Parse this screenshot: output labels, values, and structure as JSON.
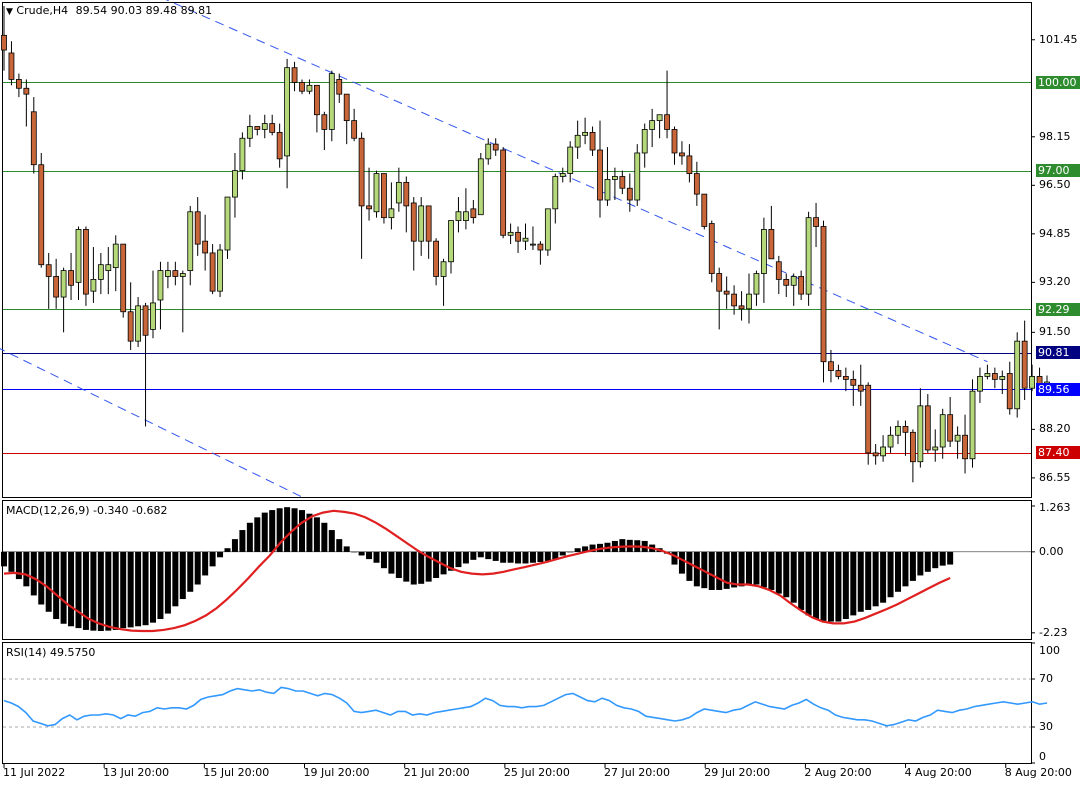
{
  "header": {
    "symbol": "Crude,H4",
    "ohlc": "89.54 90.03 89.48 89.81",
    "menu_icon": "triangle-down-icon"
  },
  "macd_label": "MACD(12,26,9) -0.340 -0.682",
  "rsi_label": "RSI(14) 49.5750",
  "price_axis": [
    "101.45",
    "98.15",
    "96.50",
    "94.85",
    "93.20",
    "91.50",
    "88.20",
    "86.55"
  ],
  "price_tags": [
    {
      "text": "100.00",
      "color": "#2e8b2e",
      "value": 100.0
    },
    {
      "text": "97.00",
      "color": "#2e8b2e",
      "value": 97.0
    },
    {
      "text": "92.29",
      "color": "#2e8b2e",
      "value": 92.29
    },
    {
      "text": "90.81",
      "color": "#000080",
      "value": 90.81
    },
    {
      "text": "89.56",
      "color": "#0000ff",
      "value": 89.56
    },
    {
      "text": "87.40",
      "color": "#cc0000",
      "value": 87.4
    }
  ],
  "macd_axis": [
    "1.263",
    "0.00",
    "-2.23"
  ],
  "rsi_axis": [
    "100",
    "70",
    "30",
    "0"
  ],
  "date_axis": [
    "11 Jul 2022",
    "13 Jul 20:00",
    "15 Jul 20:00",
    "19 Jul 20:00",
    "21 Jul 20:00",
    "25 Jul 20:00",
    "27 Jul 20:00",
    "29 Jul 20:00",
    "2 Aug 20:00",
    "4 Aug 20:00",
    "8 Aug 20:00"
  ],
  "colors": {
    "bull": "#b5d97a",
    "bear": "#c8663a",
    "wick": "#000000",
    "resistance": "#2e8b2e",
    "support": "#cc0000",
    "bid": "#000080",
    "ask": "#0000ff",
    "trend": "#3355ee",
    "macd_signal": "#e02020",
    "rsi": "#3399ff"
  },
  "chart_data": {
    "type": "candlestick",
    "symbol": "Crude",
    "timeframe": "H4",
    "ylim": [
      85.9,
      102.7
    ],
    "horizontal_levels": [
      100.0,
      97.0,
      92.29,
      90.81,
      89.56,
      87.4
    ],
    "trendlines": [
      {
        "from": {
          "bar": 21,
          "price": 102.9
        },
        "to": {
          "bar": 132,
          "price": 90.5
        }
      },
      {
        "from": {
          "bar": -1,
          "price": 91.0
        },
        "to": {
          "bar": 40,
          "price": 85.9
        }
      }
    ],
    "candles": [
      [
        101.6,
        102.6,
        100.4,
        101.1
      ],
      [
        101.0,
        101.4,
        99.9,
        100.1
      ],
      [
        100.1,
        100.3,
        99.5,
        99.8
      ],
      [
        99.8,
        100.1,
        98.5,
        99.6
      ],
      [
        99.0,
        99.5,
        96.9,
        97.2
      ],
      [
        97.2,
        97.6,
        93.7,
        93.8
      ],
      [
        93.8,
        94.2,
        92.3,
        93.4
      ],
      [
        93.4,
        94.0,
        92.3,
        92.7
      ],
      [
        92.7,
        93.7,
        91.5,
        93.6
      ],
      [
        93.6,
        94.2,
        92.6,
        93.1
      ],
      [
        93.2,
        95.1,
        92.6,
        95.0
      ],
      [
        95.0,
        95.1,
        92.4,
        92.8
      ],
      [
        92.9,
        94.4,
        92.5,
        93.3
      ],
      [
        93.3,
        94.2,
        92.8,
        93.8
      ],
      [
        93.6,
        94.4,
        92.8,
        93.8
      ],
      [
        93.7,
        94.8,
        92.9,
        94.5
      ],
      [
        94.5,
        94.5,
        92.0,
        92.2
      ],
      [
        92.2,
        93.2,
        90.9,
        91.2
      ],
      [
        91.2,
        92.7,
        91.0,
        92.4
      ],
      [
        92.4,
        92.5,
        88.3,
        91.4
      ],
      [
        91.6,
        93.6,
        91.3,
        92.5
      ],
      [
        92.6,
        93.9,
        91.6,
        93.6
      ],
      [
        93.4,
        93.9,
        93.0,
        93.6
      ],
      [
        93.6,
        93.9,
        93.1,
        93.4
      ],
      [
        93.4,
        93.6,
        91.5,
        93.5
      ],
      [
        93.6,
        95.8,
        93.1,
        95.6
      ],
      [
        95.6,
        96.1,
        94.1,
        94.5
      ],
      [
        94.6,
        95.5,
        93.6,
        94.2
      ],
      [
        94.2,
        94.5,
        92.8,
        92.9
      ],
      [
        92.9,
        94.5,
        92.7,
        94.3
      ],
      [
        94.3,
        96.1,
        94.0,
        96.1
      ],
      [
        96.1,
        97.6,
        95.4,
        97.0
      ],
      [
        97.0,
        98.3,
        96.7,
        98.1
      ],
      [
        98.1,
        98.9,
        97.8,
        98.5
      ],
      [
        98.5,
        98.5,
        98.2,
        98.4
      ],
      [
        98.4,
        98.9,
        98.1,
        98.6
      ],
      [
        98.6,
        98.9,
        98.2,
        98.3
      ],
      [
        98.3,
        98.6,
        97.1,
        97.4
      ],
      [
        97.5,
        100.8,
        96.4,
        100.5
      ],
      [
        100.5,
        100.7,
        99.7,
        100.0
      ],
      [
        100.0,
        100.1,
        99.6,
        99.7
      ],
      [
        99.7,
        100.1,
        99.6,
        99.9
      ],
      [
        99.9,
        99.9,
        98.3,
        98.9
      ],
      [
        98.9,
        99.0,
        97.7,
        98.4
      ],
      [
        98.4,
        100.4,
        98.0,
        100.3
      ],
      [
        100.1,
        100.3,
        99.3,
        99.6
      ],
      [
        99.6,
        99.6,
        97.9,
        98.7
      ],
      [
        98.7,
        99.1,
        98.0,
        98.1
      ],
      [
        98.1,
        98.3,
        94.0,
        95.8
      ],
      [
        95.8,
        97.1,
        95.3,
        95.7
      ],
      [
        95.6,
        97.0,
        95.4,
        96.9
      ],
      [
        96.9,
        96.9,
        95.2,
        95.4
      ],
      [
        95.4,
        96.6,
        95.0,
        95.7
      ],
      [
        95.9,
        97.1,
        95.6,
        96.6
      ],
      [
        96.6,
        96.8,
        94.9,
        95.8
      ],
      [
        95.9,
        96.1,
        93.6,
        94.6
      ],
      [
        94.6,
        96.1,
        94.1,
        95.8
      ],
      [
        95.8,
        95.7,
        94.0,
        94.6
      ],
      [
        94.6,
        94.7,
        93.1,
        93.4
      ],
      [
        93.4,
        94.0,
        92.4,
        93.9
      ],
      [
        93.9,
        95.3,
        93.5,
        95.3
      ],
      [
        95.3,
        96.1,
        94.9,
        95.6
      ],
      [
        95.3,
        96.4,
        95.0,
        95.6
      ],
      [
        95.7,
        96.0,
        95.2,
        95.4
      ],
      [
        95.5,
        97.6,
        95.5,
        97.4
      ],
      [
        97.4,
        98.1,
        97.2,
        97.9
      ],
      [
        97.9,
        98.1,
        97.5,
        97.7
      ],
      [
        97.7,
        97.8,
        94.7,
        94.8
      ],
      [
        94.8,
        95.2,
        94.5,
        94.9
      ],
      [
        94.9,
        95.1,
        94.2,
        94.6
      ],
      [
        94.6,
        95.2,
        94.3,
        94.7
      ],
      [
        94.5,
        95.1,
        94.3,
        94.5
      ],
      [
        94.5,
        94.6,
        93.8,
        94.3
      ],
      [
        94.3,
        95.7,
        94.1,
        95.7
      ],
      [
        95.7,
        96.9,
        95.2,
        96.8
      ],
      [
        96.8,
        97.1,
        96.6,
        96.9
      ],
      [
        96.9,
        98.0,
        96.6,
        97.8
      ],
      [
        97.8,
        98.7,
        97.4,
        98.2
      ],
      [
        98.2,
        98.8,
        97.9,
        98.3
      ],
      [
        98.3,
        98.5,
        97.5,
        97.7
      ],
      [
        97.7,
        98.7,
        95.4,
        96.0
      ],
      [
        96.0,
        97.8,
        95.8,
        96.7
      ],
      [
        96.7,
        97.1,
        96.0,
        96.8
      ],
      [
        96.8,
        97.0,
        96.2,
        96.4
      ],
      [
        96.4,
        96.9,
        95.6,
        96.0
      ],
      [
        96.0,
        97.9,
        95.8,
        97.6
      ],
      [
        97.6,
        98.6,
        97.1,
        98.4
      ],
      [
        98.4,
        99.1,
        97.8,
        98.7
      ],
      [
        98.7,
        98.9,
        98.1,
        98.9
      ],
      [
        98.9,
        100.4,
        98.1,
        98.4
      ],
      [
        98.4,
        98.5,
        97.2,
        97.6
      ],
      [
        97.6,
        98.0,
        97.2,
        97.5
      ],
      [
        97.5,
        97.9,
        96.6,
        96.9
      ],
      [
        96.9,
        97.3,
        95.8,
        96.2
      ],
      [
        96.2,
        96.2,
        95.0,
        95.1
      ],
      [
        95.2,
        95.3,
        93.2,
        93.5
      ],
      [
        93.5,
        93.7,
        91.6,
        92.9
      ],
      [
        92.9,
        93.4,
        92.3,
        92.8
      ],
      [
        92.8,
        93.1,
        92.1,
        92.4
      ],
      [
        92.4,
        92.9,
        91.9,
        92.3
      ],
      [
        92.3,
        93.5,
        91.8,
        92.8
      ],
      [
        92.8,
        93.6,
        92.4,
        93.5
      ],
      [
        93.5,
        95.4,
        92.5,
        95.0
      ],
      [
        95.0,
        95.8,
        94.1,
        94.0
      ],
      [
        93.9,
        94.1,
        92.8,
        93.3
      ],
      [
        93.3,
        93.5,
        92.7,
        93.1
      ],
      [
        93.1,
        93.5,
        92.4,
        93.4
      ],
      [
        93.4,
        93.6,
        92.6,
        92.8
      ],
      [
        92.8,
        95.6,
        92.4,
        95.4
      ],
      [
        95.4,
        95.9,
        94.4,
        95.1
      ],
      [
        95.1,
        95.3,
        89.8,
        90.5
      ],
      [
        90.5,
        90.9,
        89.8,
        90.2
      ],
      [
        90.2,
        90.4,
        89.9,
        90.0
      ],
      [
        90.0,
        90.3,
        89.5,
        89.9
      ],
      [
        89.9,
        90.2,
        89.0,
        89.7
      ],
      [
        89.7,
        90.4,
        89.0,
        89.5
      ],
      [
        89.7,
        89.8,
        87.0,
        87.4
      ],
      [
        87.4,
        87.7,
        87.0,
        87.3
      ],
      [
        87.3,
        88.0,
        87.1,
        87.6
      ],
      [
        87.6,
        88.3,
        87.4,
        88.0
      ],
      [
        88.0,
        88.5,
        87.7,
        88.3
      ],
      [
        88.3,
        88.5,
        87.3,
        88.1
      ],
      [
        88.1,
        88.2,
        86.4,
        87.1
      ],
      [
        87.1,
        89.6,
        86.9,
        89.0
      ],
      [
        89.0,
        89.4,
        87.4,
        87.5
      ],
      [
        87.5,
        88.2,
        87.1,
        87.6
      ],
      [
        87.6,
        88.9,
        87.2,
        88.7
      ],
      [
        88.7,
        89.3,
        87.6,
        87.8
      ],
      [
        87.8,
        88.3,
        87.2,
        88.0
      ],
      [
        88.0,
        88.7,
        86.7,
        87.2
      ],
      [
        87.2,
        89.9,
        86.9,
        89.5
      ],
      [
        89.5,
        90.3,
        89.1,
        90.0
      ],
      [
        90.0,
        90.4,
        89.9,
        90.1
      ],
      [
        90.1,
        90.3,
        89.6,
        89.9
      ],
      [
        89.9,
        90.2,
        89.4,
        90.0
      ],
      [
        90.1,
        90.5,
        88.7,
        88.9
      ],
      [
        88.9,
        91.5,
        88.6,
        91.2
      ],
      [
        91.2,
        91.9,
        89.2,
        89.6
      ],
      [
        89.6,
        90.4,
        89.5,
        90.0
      ],
      [
        90.0,
        90.3,
        89.5,
        89.6
      ],
      [
        89.54,
        90.03,
        89.48,
        89.81
      ]
    ],
    "macd": {
      "ylim": [
        -2.4,
        1.4
      ],
      "histogram": [
        -0.4,
        -0.55,
        -0.75,
        -0.95,
        -1.2,
        -1.45,
        -1.65,
        -1.85,
        -1.98,
        -2.05,
        -2.1,
        -2.15,
        -2.17,
        -2.18,
        -2.17,
        -2.15,
        -2.1,
        -2.08,
        -2.05,
        -2.02,
        -1.95,
        -1.85,
        -1.7,
        -1.5,
        -1.3,
        -1.1,
        -0.9,
        -0.65,
        -0.4,
        -0.15,
        0.1,
        0.35,
        0.6,
        0.8,
        0.95,
        1.08,
        1.15,
        1.2,
        1.23,
        1.2,
        1.15,
        1.05,
        0.95,
        0.8,
        0.6,
        0.35,
        0.15,
        0.0,
        -0.1,
        -0.2,
        -0.3,
        -0.45,
        -0.6,
        -0.72,
        -0.82,
        -0.9,
        -0.88,
        -0.82,
        -0.72,
        -0.62,
        -0.52,
        -0.42,
        -0.32,
        -0.22,
        -0.15,
        -0.2,
        -0.25,
        -0.3,
        -0.3,
        -0.32,
        -0.32,
        -0.3,
        -0.28,
        -0.25,
        -0.2,
        -0.1,
        0.0,
        0.1,
        0.15,
        0.2,
        0.22,
        0.25,
        0.3,
        0.35,
        0.33,
        0.32,
        0.3,
        0.2,
        0.1,
        -0.05,
        -0.35,
        -0.6,
        -0.8,
        -0.95,
        -1.0,
        -1.05,
        -1.05,
        -1.02,
        -0.98,
        -0.95,
        -0.9,
        -0.9,
        -0.98,
        -1.05,
        -1.15,
        -1.25,
        -1.4,
        -1.6,
        -1.75,
        -1.85,
        -1.9,
        -1.92,
        -1.92,
        -1.85,
        -1.75,
        -1.65,
        -1.6,
        -1.5,
        -1.4,
        -1.25,
        -1.1,
        -0.95,
        -0.8,
        -0.65,
        -0.55,
        -0.45,
        -0.38,
        -0.35
      ],
      "signal": [
        -0.6,
        -0.58,
        -0.62,
        -0.75,
        -0.95,
        -1.2,
        -1.45,
        -1.65,
        -1.85,
        -1.98,
        -2.07,
        -2.13,
        -2.17,
        -2.18,
        -2.18,
        -2.15,
        -2.1,
        -2.02,
        -1.9,
        -1.75,
        -1.55,
        -1.3,
        -1.02,
        -0.72,
        -0.4,
        -0.1,
        0.25,
        0.55,
        0.8,
        0.98,
        1.08,
        1.13,
        1.1,
        1.05,
        0.95,
        0.8,
        0.62,
        0.42,
        0.22,
        0.02,
        -0.15,
        -0.3,
        -0.45,
        -0.55,
        -0.6,
        -0.62,
        -0.6,
        -0.55,
        -0.48,
        -0.42,
        -0.35,
        -0.28,
        -0.2,
        -0.12,
        -0.05,
        0.02,
        0.08,
        0.12,
        0.14,
        0.15,
        0.14,
        0.1,
        0.02,
        -0.1,
        -0.25,
        -0.4,
        -0.55,
        -0.7,
        -0.85,
        -0.9,
        -0.9,
        -0.95,
        -1.05,
        -1.2,
        -1.42,
        -1.62,
        -1.8,
        -1.92,
        -1.97,
        -1.97,
        -1.92,
        -1.82,
        -1.7,
        -1.58,
        -1.45,
        -1.3,
        -1.15,
        -1.0,
        -0.85,
        -0.72
      ]
    },
    "rsi": {
      "ylim": [
        0,
        100
      ],
      "levels": [
        70,
        30
      ],
      "values": [
        52,
        50,
        47,
        42,
        35,
        33,
        31,
        32,
        37,
        40,
        36,
        39,
        40,
        40,
        41,
        40,
        37,
        40,
        39,
        42,
        43,
        46,
        45,
        46,
        46,
        45,
        48,
        53,
        55,
        56,
        57,
        60,
        62,
        61,
        60,
        61,
        59,
        58,
        63,
        62,
        60,
        60,
        58,
        56,
        58,
        57,
        54,
        50,
        43,
        42,
        43,
        44,
        42,
        40,
        43,
        43,
        40,
        41,
        40,
        42,
        43,
        44,
        45,
        46,
        47,
        50,
        54,
        52,
        48,
        47,
        47,
        46,
        47,
        47,
        48,
        51,
        54,
        57,
        58,
        55,
        52,
        51,
        54,
        52,
        48,
        46,
        45,
        43,
        39,
        38,
        37,
        36,
        35,
        36,
        38,
        42,
        45,
        44,
        43,
        42,
        44,
        45,
        48,
        51,
        49,
        47,
        46,
        45,
        48,
        50,
        53,
        49,
        46,
        44,
        40,
        38,
        37,
        36,
        36,
        35,
        33,
        31,
        32,
        34,
        36,
        35,
        38,
        40,
        44,
        43,
        42,
        44,
        45,
        47,
        48,
        49,
        50,
        51,
        50,
        49,
        50,
        51,
        49,
        50
      ]
    }
  }
}
